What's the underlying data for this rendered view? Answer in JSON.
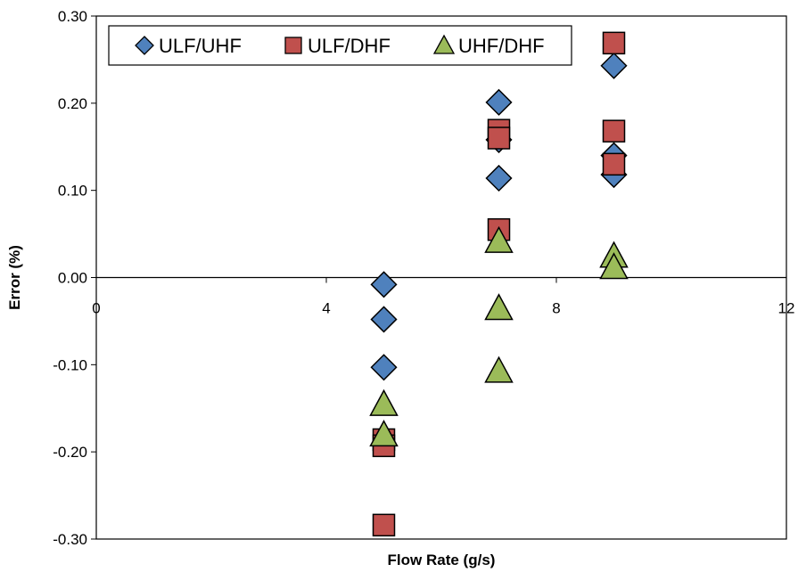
{
  "chart_data": {
    "type": "scatter",
    "title": "",
    "xlabel": "Flow Rate (g/s)",
    "ylabel": "Error (%)",
    "xlim": [
      0,
      12
    ],
    "ylim": [
      -0.3,
      0.3
    ],
    "xticks": [
      0,
      4,
      8,
      12
    ],
    "xtick_labels": [
      "0",
      "4",
      "8",
      "12"
    ],
    "yticks": [
      -0.3,
      -0.2,
      -0.1,
      0.0,
      0.1,
      0.2,
      0.3
    ],
    "ytick_labels": [
      "-0.30",
      "-0.20",
      "-0.10",
      "0.00",
      "0.10",
      "0.20",
      "0.30"
    ],
    "grid": false,
    "legend_position": "top",
    "series": [
      {
        "name": "ULF/UHF",
        "marker": "diamond",
        "color": "#4f81bd",
        "points": [
          {
            "x": 5,
            "y": -0.008
          },
          {
            "x": 5,
            "y": -0.048
          },
          {
            "x": 5,
            "y": -0.103
          },
          {
            "x": 7,
            "y": 0.201
          },
          {
            "x": 7,
            "y": 0.158
          },
          {
            "x": 7,
            "y": 0.114
          },
          {
            "x": 9,
            "y": 0.243
          },
          {
            "x": 9,
            "y": 0.14
          },
          {
            "x": 9,
            "y": 0.118
          }
        ]
      },
      {
        "name": "ULF/DHF",
        "marker": "square",
        "color": "#c0504d",
        "points": [
          {
            "x": 5,
            "y": -0.186
          },
          {
            "x": 5,
            "y": -0.193
          },
          {
            "x": 5,
            "y": -0.284
          },
          {
            "x": 7,
            "y": 0.169
          },
          {
            "x": 7,
            "y": 0.16
          },
          {
            "x": 7,
            "y": 0.055
          },
          {
            "x": 9,
            "y": 0.269
          },
          {
            "x": 9,
            "y": 0.168
          },
          {
            "x": 9,
            "y": 0.13
          }
        ]
      },
      {
        "name": "UHF/DHF",
        "marker": "triangle",
        "color": "#9bbb59",
        "points": [
          {
            "x": 5,
            "y": -0.145
          },
          {
            "x": 5,
            "y": -0.18
          },
          {
            "x": 7,
            "y": 0.042
          },
          {
            "x": 7,
            "y": -0.035
          },
          {
            "x": 7,
            "y": -0.107
          },
          {
            "x": 9,
            "y": 0.025
          },
          {
            "x": 9,
            "y": 0.012
          }
        ]
      }
    ]
  }
}
